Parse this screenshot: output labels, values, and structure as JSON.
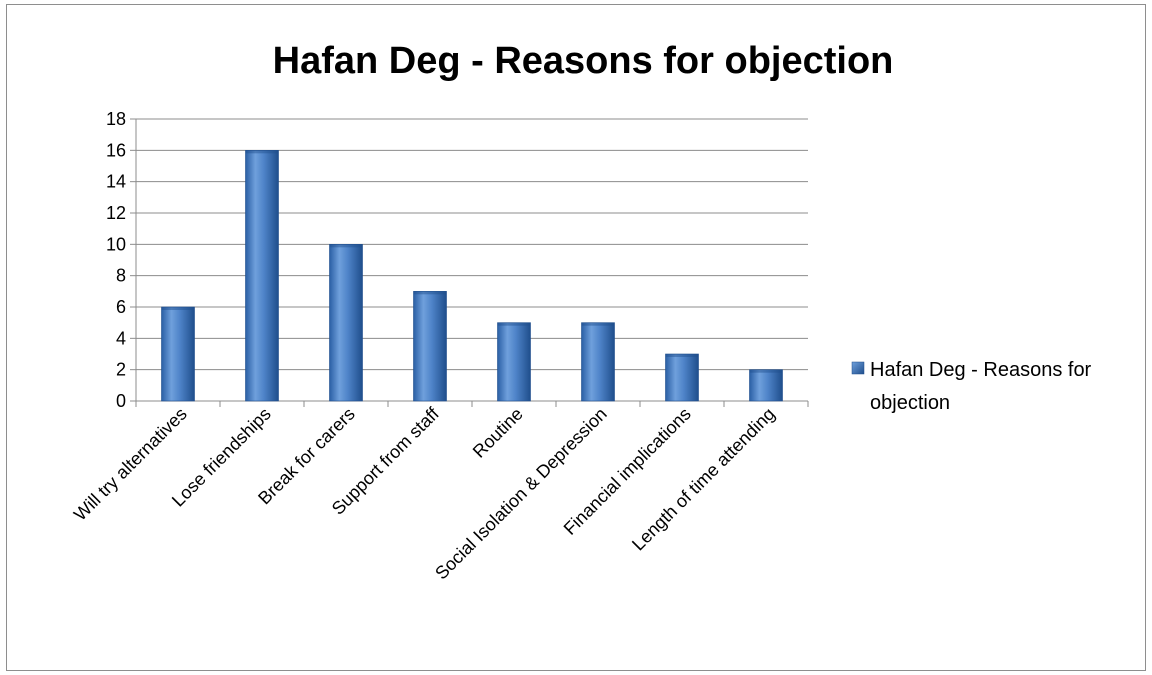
{
  "chart_data": {
    "type": "bar",
    "title": "Hafan Deg - Reasons for objection",
    "xlabel": "",
    "ylabel": "",
    "categories": [
      "Will try alternatives",
      "Lose friendships",
      "Break for carers",
      "Support from staff",
      "Routine",
      "Social Isolation & Depression",
      "Financial implications",
      "Length of time attending"
    ],
    "series": [
      {
        "name": "Hafan Deg - Reasons for objection",
        "values": [
          6,
          16,
          10,
          7,
          5,
          5,
          3,
          2
        ]
      }
    ],
    "ylim": [
      0,
      18
    ],
    "yticks": [
      0,
      2,
      4,
      6,
      8,
      10,
      12,
      14,
      16,
      18
    ],
    "grid": true,
    "legend_position": "right",
    "legend_lines": [
      "Hafan Deg - Reasons for",
      "objection"
    ],
    "colors": {
      "bar_light": "#6fa0dc",
      "bar_mid": "#3f74bd",
      "bar_dark": "#1f4e8c",
      "grid": "#8c8c8c",
      "axis": "#8c8c8c"
    }
  }
}
